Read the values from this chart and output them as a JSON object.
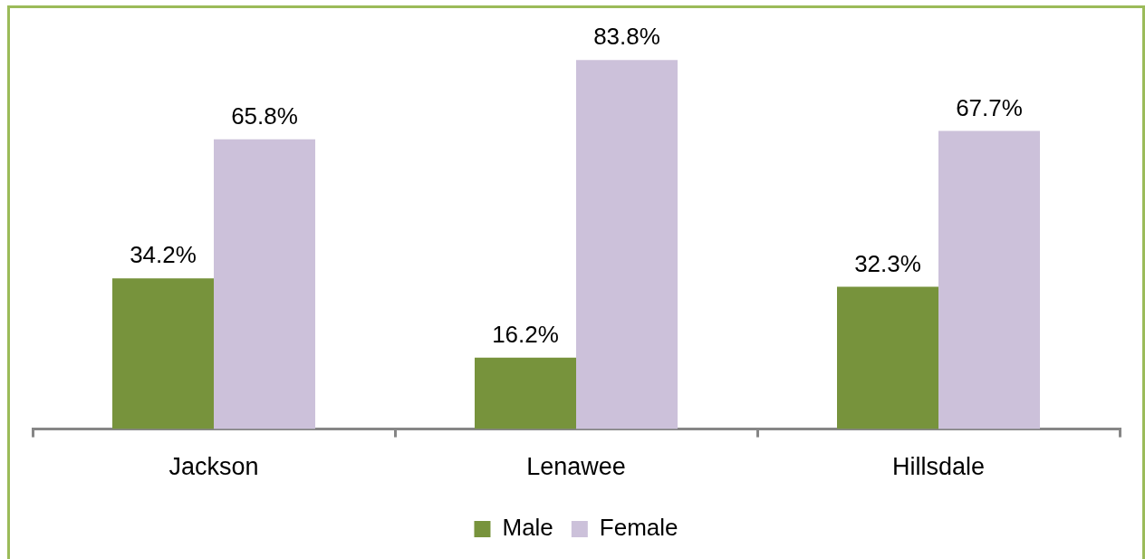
{
  "chart_data": {
    "type": "bar",
    "categories": [
      "Jackson",
      "Lenawee",
      "Hillsdale"
    ],
    "series": [
      {
        "name": "Male",
        "color": "#77933c",
        "values": [
          34.2,
          16.2,
          32.3
        ],
        "value_labels": [
          "34.2%",
          "16.2%",
          "32.3%"
        ]
      },
      {
        "name": "Female",
        "color": "#ccc1da",
        "values": [
          65.8,
          83.8,
          67.7
        ],
        "value_labels": [
          "65.8%",
          "83.8%",
          "67.7%"
        ]
      }
    ],
    "legend": "bottom",
    "tick_labels": "x"
  }
}
